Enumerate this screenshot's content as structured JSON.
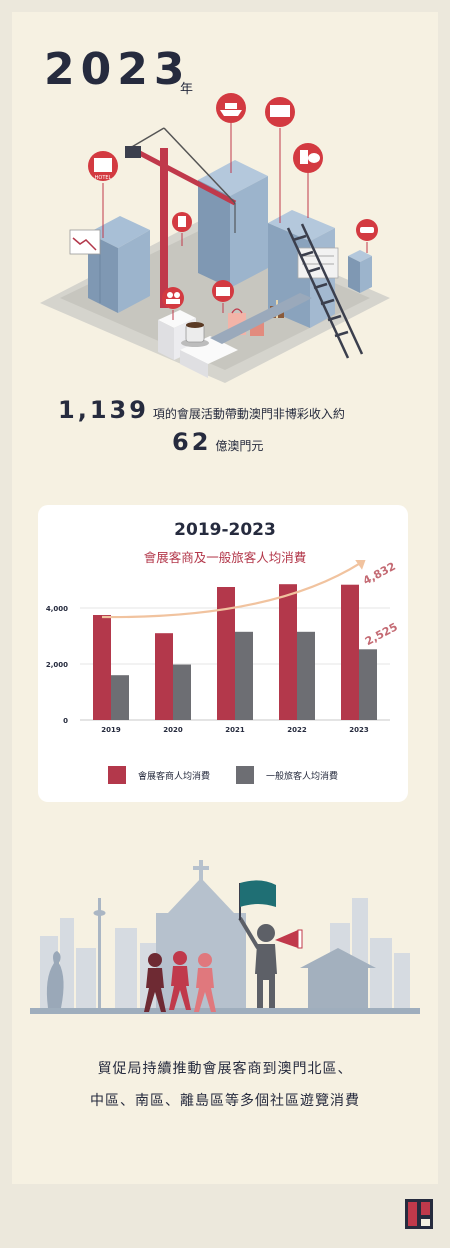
{
  "header": {
    "year": "2023",
    "year_suffix": "年"
  },
  "stats": {
    "events_count": "1,139",
    "events_text": "項的會展活動帶動澳門非博彩收入約",
    "revenue_value": "62",
    "revenue_unit": "億澳門元"
  },
  "chart_card": {
    "title": "2019-2023",
    "subtitle": "會展客商及一般旅客人均消費"
  },
  "chart_data": {
    "type": "bar",
    "categories": [
      "2019",
      "2020",
      "2021",
      "2022",
      "2023"
    ],
    "series": [
      {
        "name": "會展客商人均消費",
        "values": [
          3750,
          3100,
          4750,
          4850,
          4832
        ],
        "color": "#b3384b"
      },
      {
        "name": "一般旅客人均消費",
        "values": [
          1600,
          1980,
          3150,
          3150,
          2525
        ],
        "color": "#6d6e73"
      }
    ],
    "yticks": [
      "0",
      "2,000",
      "4,000"
    ],
    "ylim": [
      0,
      4000
    ],
    "annotations": [
      "4,832",
      "2,525"
    ],
    "trend_color": "#f1c39f",
    "grid": true,
    "legend_position": "bottom"
  },
  "closing": {
    "line1": "貿促局持續推動會展客商到澳門北區、",
    "line2": "中區、南區、離島區等多個社區遊覽消費"
  },
  "icons": [
    "hotel-icon",
    "ferry-icon",
    "ticket-icon",
    "fast-food-icon",
    "car-icon",
    "gift-icon",
    "restaurant-sign-icon",
    "people-icon",
    "crane-icon",
    "ladder-icon",
    "coffee-cup-icon",
    "shopping-bag-icon",
    "megaphone-icon",
    "flag-icon",
    "logo-icon"
  ]
}
